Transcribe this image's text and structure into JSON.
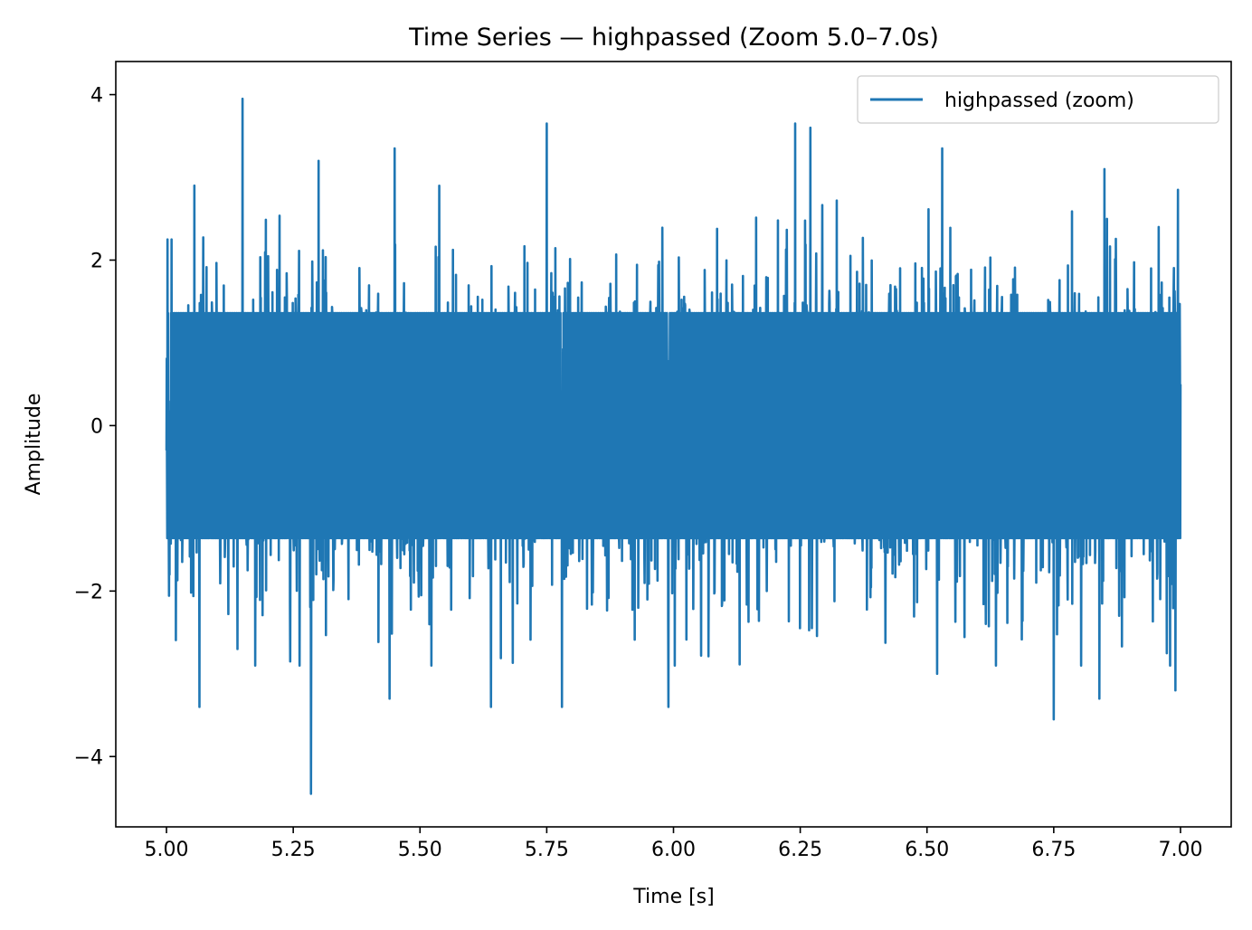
{
  "chart_data": {
    "type": "line",
    "title": "Time Series — highpassed (Zoom 5.0–7.0s)",
    "xlabel": "Time [s]",
    "ylabel": "Amplitude",
    "xlim": [
      4.9,
      7.1
    ],
    "ylim": [
      -4.85,
      4.4
    ],
    "xticks": [
      5.0,
      5.25,
      5.5,
      5.75,
      6.0,
      6.25,
      6.5,
      6.75,
      7.0
    ],
    "xtick_labels": [
      "5.00",
      "5.25",
      "5.50",
      "5.75",
      "6.00",
      "6.25",
      "6.50",
      "6.75",
      "7.00"
    ],
    "yticks": [
      -4,
      -2,
      0,
      2,
      4
    ],
    "ytick_labels": [
      "−4",
      "−2",
      "0",
      "2",
      "4"
    ],
    "grid": false,
    "legend_position": "top-right",
    "series": [
      {
        "name": "highpassed (zoom)",
        "color": "#1f77b4",
        "x_start": 5.0,
        "x_end": 7.0,
        "typical_range": [
          -1.6,
          1.6
        ],
        "notable_points": [
          {
            "x": 5.0,
            "y": -0.3
          },
          {
            "x": 5.002,
            "y": 2.25
          },
          {
            "x": 5.006,
            "y": -1.8
          },
          {
            "x": 5.01,
            "y": 2.25
          },
          {
            "x": 5.065,
            "y": -3.4
          },
          {
            "x": 5.055,
            "y": 2.9
          },
          {
            "x": 5.15,
            "y": 3.95
          },
          {
            "x": 5.14,
            "y": -2.7
          },
          {
            "x": 5.285,
            "y": -4.45
          },
          {
            "x": 5.3,
            "y": 3.2
          },
          {
            "x": 5.44,
            "y": -3.3
          },
          {
            "x": 5.45,
            "y": 3.35
          },
          {
            "x": 5.64,
            "y": -3.4
          },
          {
            "x": 5.75,
            "y": 3.65
          },
          {
            "x": 5.78,
            "y": -3.4
          },
          {
            "x": 5.99,
            "y": -3.4
          },
          {
            "x": 6.24,
            "y": 3.65
          },
          {
            "x": 6.27,
            "y": 3.6
          },
          {
            "x": 6.53,
            "y": 3.35
          },
          {
            "x": 6.52,
            "y": -3.0
          },
          {
            "x": 6.75,
            "y": -3.55
          },
          {
            "x": 6.84,
            "y": -3.3
          },
          {
            "x": 6.85,
            "y": 3.1
          },
          {
            "x": 6.99,
            "y": -3.2
          },
          {
            "x": 6.995,
            "y": 2.85
          },
          {
            "x": 7.0,
            "y": 0.5
          }
        ]
      }
    ]
  }
}
